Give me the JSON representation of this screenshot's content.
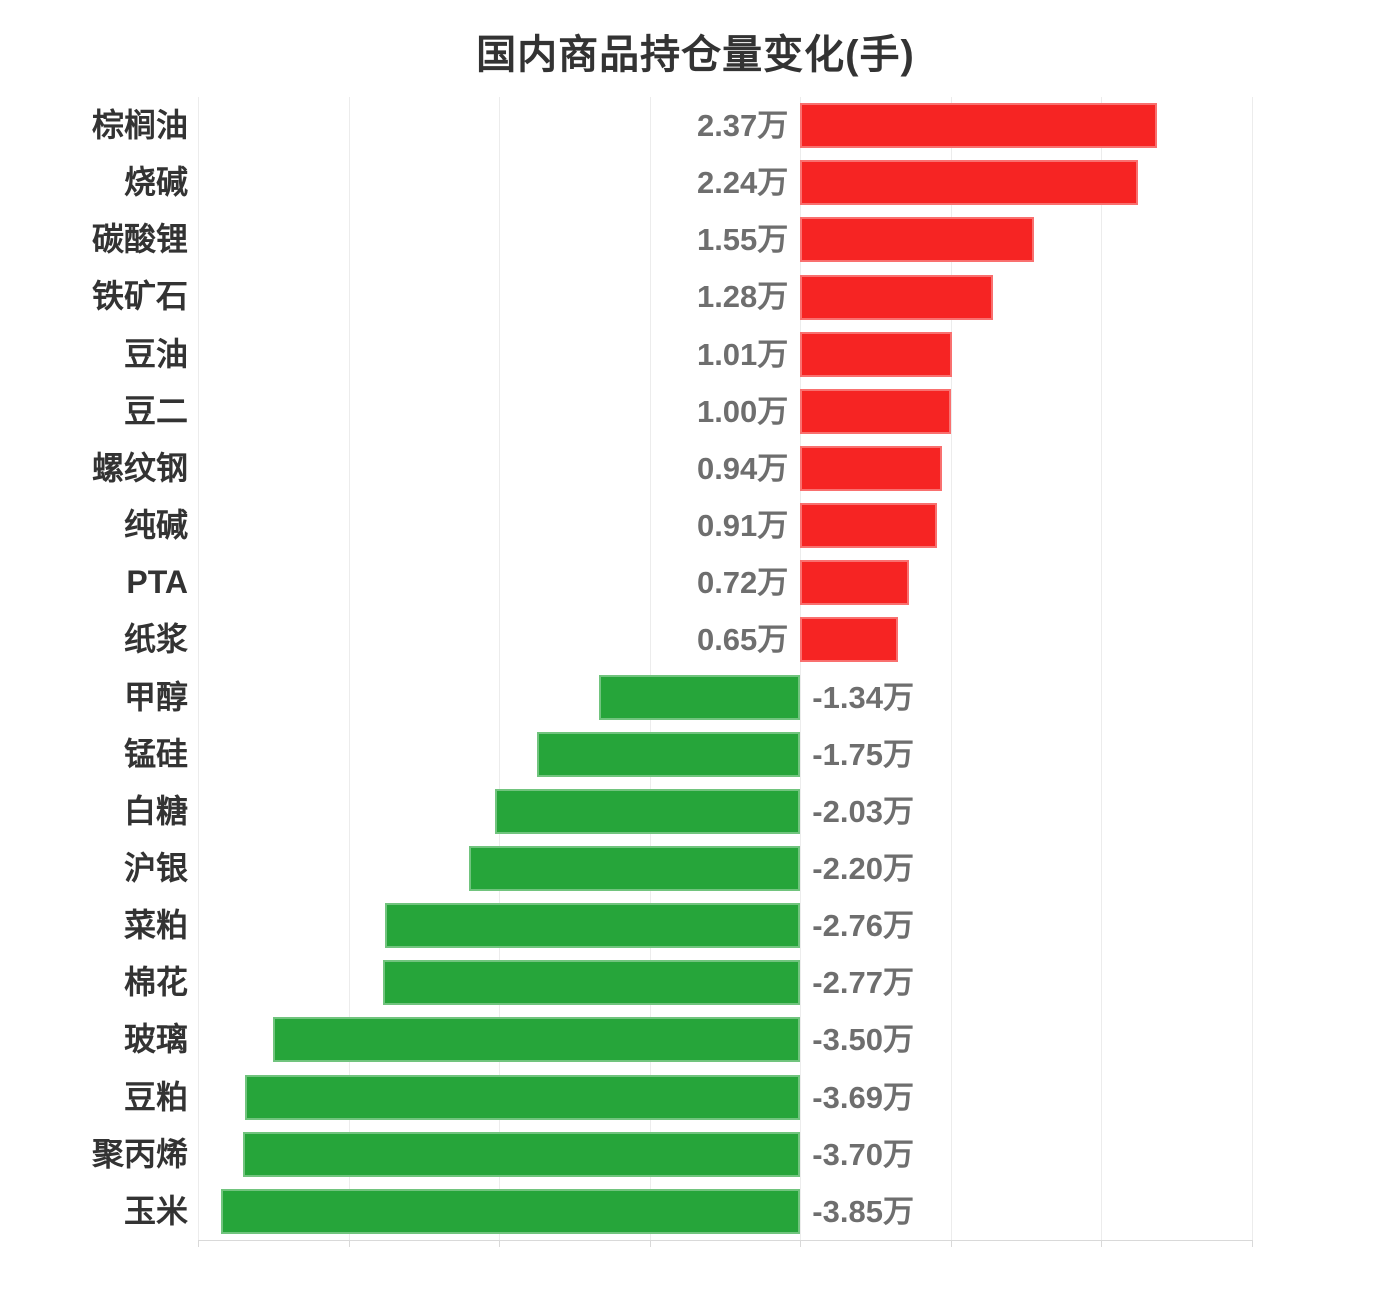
{
  "chart_data": {
    "type": "bar",
    "orientation": "horizontal",
    "title": "国内商品持仓量变化(手)",
    "unit": "万",
    "categories": [
      "棕榈油",
      "烧碱",
      "碳酸锂",
      "铁矿石",
      "豆油",
      "豆二",
      "螺纹钢",
      "纯碱",
      "PTA",
      "纸浆",
      "甲醇",
      "锰硅",
      "白糖",
      "沪银",
      "菜粕",
      "棉花",
      "玻璃",
      "豆粕",
      "聚丙烯",
      "玉米"
    ],
    "values": [
      2.37,
      2.24,
      1.55,
      1.28,
      1.01,
      1.0,
      0.94,
      0.91,
      0.72,
      0.65,
      -1.34,
      -1.75,
      -2.03,
      -2.2,
      -2.76,
      -2.77,
      -3.5,
      -3.69,
      -3.7,
      -3.85
    ],
    "value_labels": [
      "2.37万",
      "2.24万",
      "1.55万",
      "1.28万",
      "1.01万",
      "1.00万",
      "0.94万",
      "0.91万",
      "0.72万",
      "0.65万",
      "-1.34万",
      "-1.75万",
      "-2.03万",
      "-2.20万",
      "-2.76万",
      "-2.77万",
      "-3.50万",
      "-3.69万",
      "-3.70万",
      "-3.85万"
    ],
    "xlim": [
      -4,
      3
    ],
    "grid_interval": 1,
    "grid": true,
    "legend": false,
    "colors": {
      "positive": "#f62423",
      "negative": "#26a53a",
      "value_label": "#6e6e6e",
      "category_label": "#333333",
      "title": "#333333",
      "grid_line": "#ececec",
      "axis_line": "#d9d9d9"
    }
  }
}
